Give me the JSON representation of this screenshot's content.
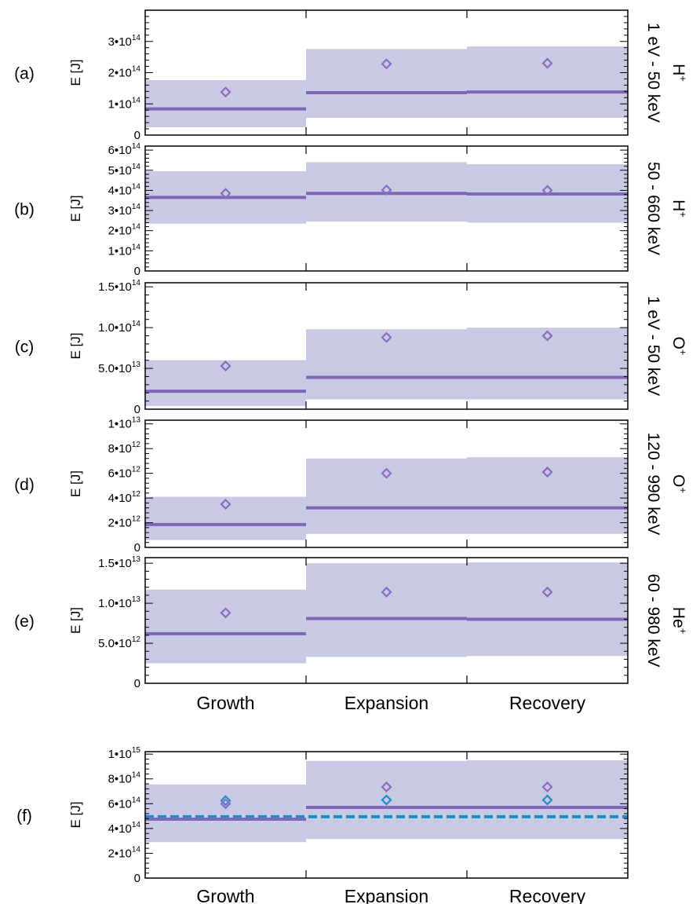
{
  "colors": {
    "band": "#c8cae4",
    "line": "#8065b8",
    "diamond": "#8b6cc0",
    "cyan": "#1f8fcc",
    "axis": "#000000"
  },
  "chart_data": [
    {
      "id": "a",
      "label": "(a)",
      "type": "line",
      "ylabel": "E [J]",
      "side_label": "1 eV - 50 keV",
      "ion": "H",
      "ion_charge": "+",
      "ylim": [
        0,
        400000000000000.0
      ],
      "yticks": [
        {
          "value": 0,
          "mant": "0",
          "exp": ""
        },
        {
          "value": 100000000000000.0,
          "mant": "1•10",
          "exp": "14"
        },
        {
          "value": 200000000000000.0,
          "mant": "2•10",
          "exp": "14"
        },
        {
          "value": 300000000000000.0,
          "mant": "3•10",
          "exp": "14"
        }
      ],
      "categories": [
        "Growth",
        "Expansion",
        "Recovery"
      ],
      "median": [
        84000000000000.0,
        136000000000000.0,
        138000000000000.0
      ],
      "band_low": [
        25000000000000.0,
        55000000000000.0,
        55000000000000.0
      ],
      "band_high": [
        176000000000000.0,
        276000000000000.0,
        284000000000000.0
      ],
      "mean": [
        138000000000000.0,
        228000000000000.0,
        230000000000000.0
      ]
    },
    {
      "id": "b",
      "label": "(b)",
      "type": "line",
      "ylabel": "E [J]",
      "side_label": "50 - 660 keV",
      "ion": "H",
      "ion_charge": "+",
      "ylim": [
        0,
        620000000000000.0
      ],
      "yticks": [
        {
          "value": 0,
          "mant": "0",
          "exp": ""
        },
        {
          "value": 100000000000000.0,
          "mant": "1•10",
          "exp": "14"
        },
        {
          "value": 200000000000000.0,
          "mant": "2•10",
          "exp": "14"
        },
        {
          "value": 300000000000000.0,
          "mant": "3•10",
          "exp": "14"
        },
        {
          "value": 400000000000000.0,
          "mant": "4•10",
          "exp": "14"
        },
        {
          "value": 500000000000000.0,
          "mant": "5•10",
          "exp": "14"
        },
        {
          "value": 600000000000000.0,
          "mant": "6•10",
          "exp": "14"
        }
      ],
      "categories": [
        "Growth",
        "Expansion",
        "Recovery"
      ],
      "median": [
        365000000000000.0,
        385000000000000.0,
        382000000000000.0
      ],
      "band_low": [
        235000000000000.0,
        245000000000000.0,
        240000000000000.0
      ],
      "band_high": [
        495000000000000.0,
        540000000000000.0,
        530000000000000.0
      ],
      "mean": [
        385000000000000.0,
        402000000000000.0,
        400000000000000.0
      ]
    },
    {
      "id": "c",
      "label": "(c)",
      "type": "line",
      "ylabel": "E [J]",
      "side_label": "1 eV - 50 keV",
      "ion": "O",
      "ion_charge": "+",
      "ylim": [
        0,
        155000000000000.0
      ],
      "yticks": [
        {
          "value": 0,
          "mant": "0",
          "exp": ""
        },
        {
          "value": 50000000000000.0,
          "mant": "5.0•10",
          "exp": "13"
        },
        {
          "value": 100000000000000.0,
          "mant": "1.0•10",
          "exp": "14"
        },
        {
          "value": 150000000000000.0,
          "mant": "1.5•10",
          "exp": "14"
        }
      ],
      "categories": [
        "Growth",
        "Expansion",
        "Recovery"
      ],
      "median": [
        22000000000000.0,
        39000000000000.0,
        39000000000000.0
      ],
      "band_low": [
        4000000000000.0,
        12000000000000.0,
        12000000000000.0
      ],
      "band_high": [
        60000000000000.0,
        98000000000000.0,
        100000000000000.0
      ],
      "mean": [
        53000000000000.0,
        88000000000000.0,
        90000000000000.0
      ]
    },
    {
      "id": "d",
      "label": "(d)",
      "type": "line",
      "ylabel": "E [J]",
      "side_label": "120 - 990 keV",
      "ion": "O",
      "ion_charge": "+",
      "ylim": [
        0,
        10300000000000.0
      ],
      "yticks": [
        {
          "value": 0,
          "mant": "0",
          "exp": ""
        },
        {
          "value": 2000000000000.0,
          "mant": "2•10",
          "exp": "12"
        },
        {
          "value": 4000000000000.0,
          "mant": "4•10",
          "exp": "12"
        },
        {
          "value": 6000000000000.0,
          "mant": "6•10",
          "exp": "12"
        },
        {
          "value": 8000000000000.0,
          "mant": "8•10",
          "exp": "12"
        },
        {
          "value": 10000000000000.0,
          "mant": "1•10",
          "exp": "13"
        }
      ],
      "categories": [
        "Growth",
        "Expansion",
        "Recovery"
      ],
      "median": [
        1850000000000.0,
        3200000000000.0,
        3200000000000.0
      ],
      "band_low": [
        600000000000.0,
        1100000000000.0,
        1100000000000.0
      ],
      "band_high": [
        4100000000000.0,
        7200000000000.0,
        7300000000000.0
      ],
      "mean": [
        3500000000000.0,
        6000000000000.0,
        6100000000000.0
      ]
    },
    {
      "id": "e",
      "label": "(e)",
      "type": "line",
      "ylabel": "E [J]",
      "side_label": "60 - 980 keV",
      "ion": "He",
      "ion_charge": "+",
      "ylim": [
        0,
        15700000000000.0
      ],
      "yticks": [
        {
          "value": 0,
          "mant": "0",
          "exp": ""
        },
        {
          "value": 5000000000000.0,
          "mant": "5.0•10",
          "exp": "12"
        },
        {
          "value": 10000000000000.0,
          "mant": "1.0•10",
          "exp": "13"
        },
        {
          "value": 15000000000000.0,
          "mant": "1.5•10",
          "exp": "13"
        }
      ],
      "categories": [
        "Growth",
        "Expansion",
        "Recovery"
      ],
      "median": [
        6200000000000.0,
        8100000000000.0,
        8000000000000.0
      ],
      "band_low": [
        2500000000000.0,
        3300000000000.0,
        3400000000000.0
      ],
      "band_high": [
        11700000000000.0,
        15000000000000.0,
        15100000000000.0
      ],
      "mean": [
        8800000000000.0,
        11400000000000.0,
        11400000000000.0
      ]
    },
    {
      "id": "f",
      "label": "(f)",
      "type": "line",
      "ylabel": "E [J]",
      "side_label": "",
      "ion": "",
      "ion_charge": "",
      "ylim": [
        0,
        1020000000000000.0
      ],
      "yticks": [
        {
          "value": 0,
          "mant": "0",
          "exp": ""
        },
        {
          "value": 200000000000000.0,
          "mant": "2•10",
          "exp": "14"
        },
        {
          "value": 400000000000000.0,
          "mant": "4•10",
          "exp": "14"
        },
        {
          "value": 600000000000000.0,
          "mant": "6•10",
          "exp": "14"
        },
        {
          "value": 800000000000000.0,
          "mant": "8•10",
          "exp": "14"
        },
        {
          "value": 1000000000000000.0,
          "mant": "1•10",
          "exp": "15"
        }
      ],
      "categories": [
        "Growth",
        "Expansion",
        "Recovery"
      ],
      "median": [
        475000000000000.0,
        570000000000000.0,
        570000000000000.0
      ],
      "band_low": [
        290000000000000.0,
        315000000000000.0,
        315000000000000.0
      ],
      "band_high": [
        755000000000000.0,
        945000000000000.0,
        950000000000000.0
      ],
      "mean": [
        600000000000000.0,
        735000000000000.0,
        735000000000000.0
      ],
      "mean2": [
        625000000000000.0,
        630000000000000.0,
        630000000000000.0
      ],
      "dashed_level": 495000000000000.0
    }
  ]
}
